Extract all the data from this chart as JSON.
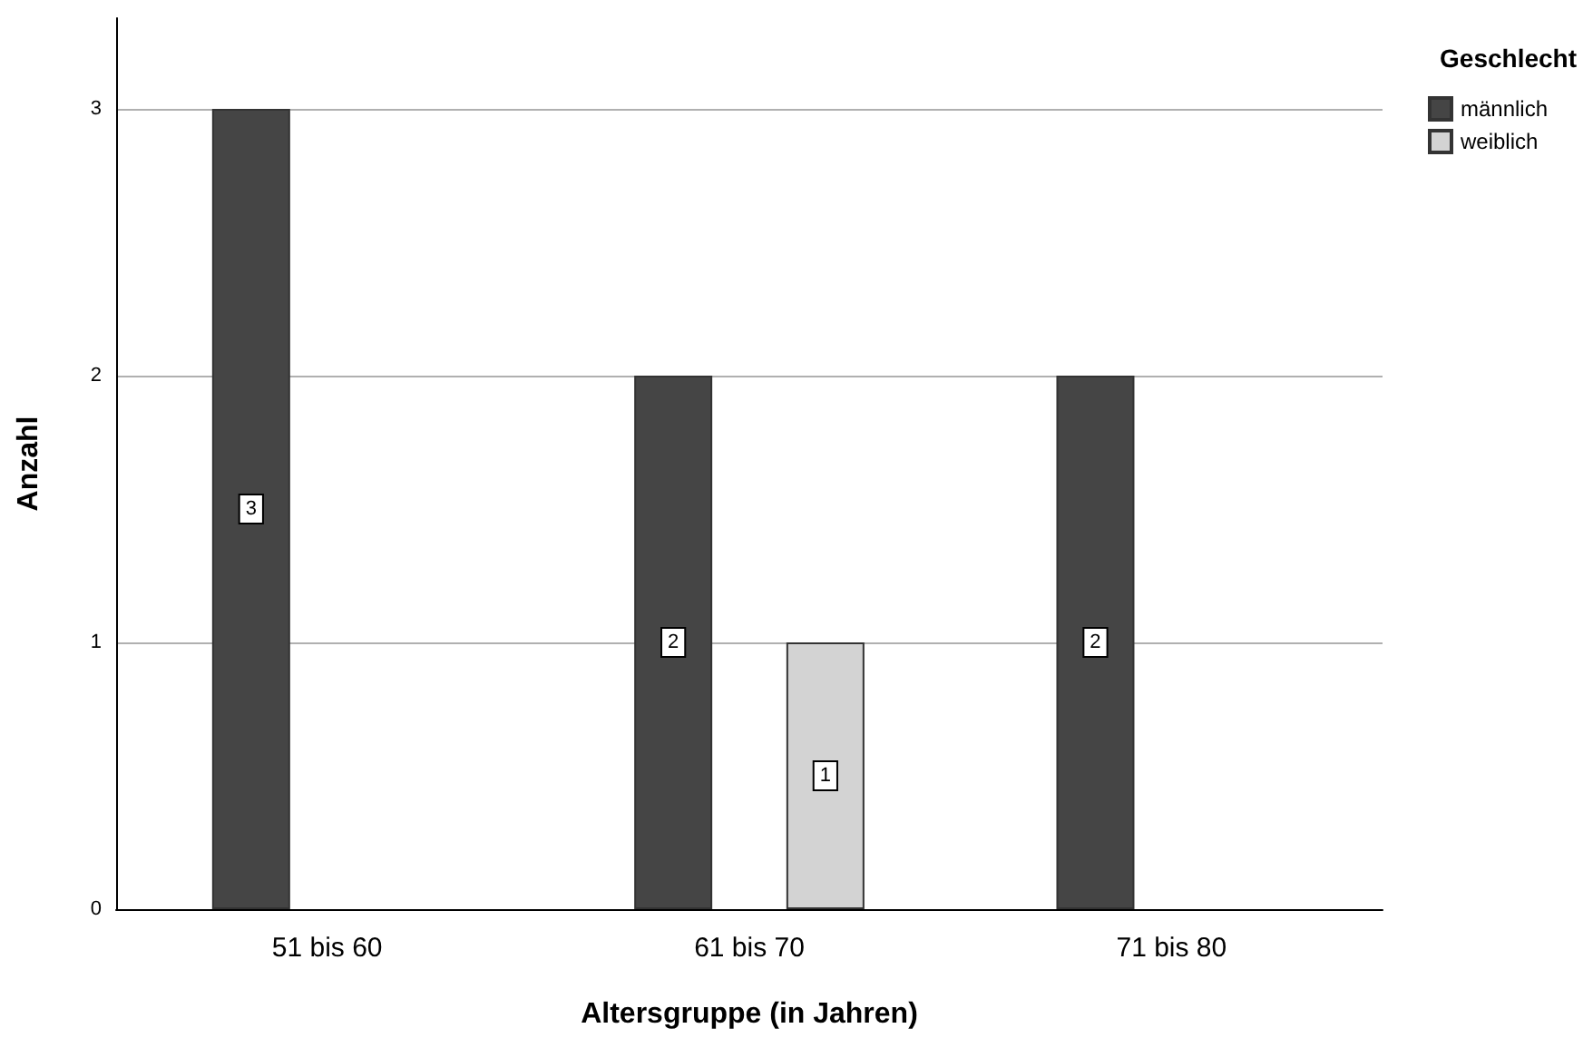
{
  "chart_data": {
    "type": "bar",
    "xlabel": "Altersgruppe (in Jahren)",
    "ylabel": "Anzahl",
    "legend_title": "Geschlecht",
    "categories": [
      "51 bis 60",
      "61 bis 70",
      "71 bis 80"
    ],
    "series": [
      {
        "name": "männlich",
        "color": "#454545",
        "values": [
          3,
          2,
          2
        ]
      },
      {
        "name": "weiblich",
        "color": "#d3d3d3",
        "values": [
          null,
          1,
          null
        ]
      }
    ],
    "ylim": [
      0,
      3.34
    ],
    "yticks": [
      0,
      1,
      2,
      3
    ],
    "grid": "y",
    "legend": "top right",
    "data_labels": true
  }
}
